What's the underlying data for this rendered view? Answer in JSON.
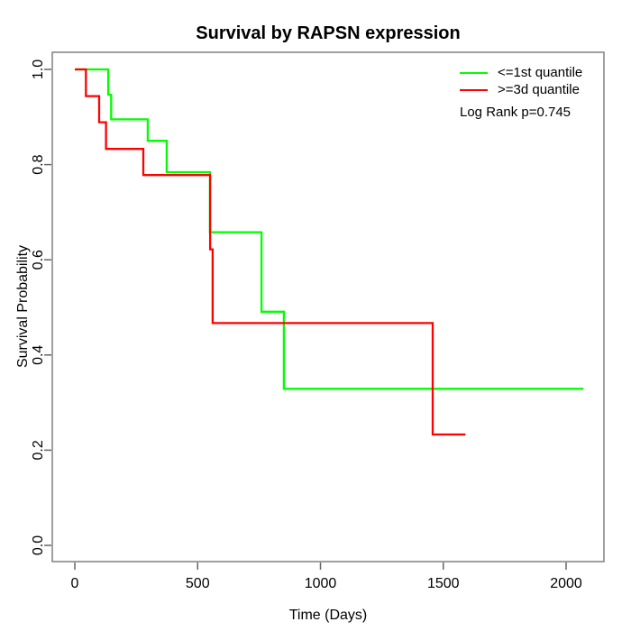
{
  "title": "Survival by RAPSN expression",
  "axes": {
    "xlabel": "Time (Days)",
    "ylabel": "Survival Probability",
    "x_tick_labels": [
      "0",
      "500",
      "1000",
      "1500",
      "2000"
    ],
    "y_tick_labels": [
      "0.0",
      "0.2",
      "0.4",
      "0.6",
      "0.8",
      "1.0"
    ]
  },
  "legend": {
    "items": [
      {
        "label": "<=1st quantile",
        "color": "#00ff00"
      },
      {
        "label": ">=3d quantile",
        "color": "#ff0000"
      }
    ],
    "annotation": "Log Rank p=0.745"
  },
  "colors": {
    "background": "#ffffff",
    "box": "#808080",
    "tick": "#666666",
    "text": "#000000",
    "low_group": "#00ff00",
    "high_group": "#ff0000"
  },
  "chart_data": {
    "type": "line",
    "subtype": "kaplan-meier-step",
    "title": "Survival by RAPSN expression",
    "xlabel": "Time (Days)",
    "ylabel": "Survival Probability",
    "xlim": [
      -90,
      2155
    ],
    "ylim": [
      -0.035,
      1.035
    ],
    "x_ticks": [
      0,
      500,
      1000,
      1500,
      2000
    ],
    "y_ticks": [
      0,
      0.2,
      0.4,
      0.6,
      0.8,
      1.0
    ],
    "grid": false,
    "legend_position": "top-right",
    "annotation": "Log Rank p=0.745",
    "series": [
      {
        "name": "<=1st quantile",
        "color": "#00ff00",
        "end_time": 2070,
        "steps": [
          [
            0,
            1.0
          ],
          [
            136,
            0.947
          ],
          [
            148,
            0.895
          ],
          [
            297,
            0.85
          ],
          [
            374,
            0.784
          ],
          [
            550,
            0.658
          ],
          [
            760,
            0.491
          ],
          [
            851,
            0.329
          ]
        ]
      },
      {
        "name": ">=3d quantile",
        "color": "#ff0000",
        "end_time": 1590,
        "steps": [
          [
            0,
            1.0
          ],
          [
            45,
            0.944
          ],
          [
            99,
            0.889
          ],
          [
            127,
            0.833
          ],
          [
            279,
            0.778
          ],
          [
            551,
            0.622
          ],
          [
            561,
            0.467
          ],
          [
            1457,
            0.233
          ]
        ]
      }
    ]
  }
}
